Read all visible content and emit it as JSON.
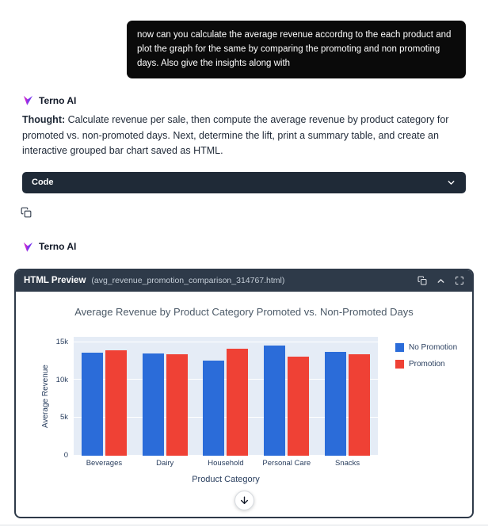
{
  "user_message": {
    "text": "now can you calculate the average revenue accordng to the each product and plot the graph for the same by comparing the promoting and non promoting days. Also give the insights along with"
  },
  "turn1": {
    "name": "Terno AI",
    "thought_label": "Thought:",
    "thought_body": "Calculate revenue per sale, then compute the average revenue by product category for promoted vs. non-promoted days. Next, determine the lift, print a summary table, and create an interactive grouped bar chart saved as HTML.",
    "code_label": "Code"
  },
  "turn2": {
    "name": "Terno AI"
  },
  "preview": {
    "title": "HTML Preview",
    "filename": "(avg_revenue_promotion_comparison_314767.html)"
  },
  "colors": {
    "dark_bar": "#1f2a37",
    "panel_header": "#2e3a49",
    "plot_background": "#e5ecf6",
    "axis_text": "#2a3f5f",
    "no_promotion_blue": "#2b6cd9",
    "promotion_red": "#ef4135",
    "logo_magenta": "#c026d3",
    "logo_purple": "#7c3aed"
  },
  "chart_data": {
    "type": "bar",
    "title": "Average Revenue by Product Category Promoted vs. Non-Promoted Days",
    "xlabel": "Product Category",
    "ylabel": "Average Revenue",
    "categories": [
      "Beverages",
      "Dairy",
      "Household",
      "Personal Care",
      "Snacks"
    ],
    "series": [
      {
        "name": "No Promotion",
        "color": "#2b6cd9",
        "values": [
          13600,
          13500,
          12600,
          14500,
          13700
        ]
      },
      {
        "name": "Promotion",
        "color": "#ef4135",
        "values": [
          13900,
          13400,
          14100,
          13100,
          13400
        ]
      }
    ],
    "ylim": [
      0,
      15000
    ],
    "yticks": [
      {
        "label": "0",
        "value": 0
      },
      {
        "label": "5k",
        "value": 5000
      },
      {
        "label": "10k",
        "value": 10000
      },
      {
        "label": "15k",
        "value": 15000
      }
    ],
    "legend_position": "right",
    "grid": true,
    "plot_bg": "#e5ecf6"
  }
}
